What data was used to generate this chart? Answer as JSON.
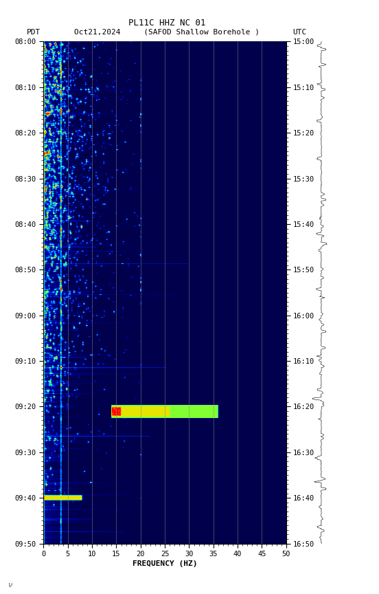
{
  "title_line1": "PL11C HHZ NC 01",
  "title_line2": "PDT   Oct21,2024      (SAFOD Shallow Borehole )                    UTC",
  "xlabel": "FREQUENCY (HZ)",
  "freq_min": 0,
  "freq_max": 50,
  "time_ticks_pdt": [
    "08:00",
    "08:10",
    "08:20",
    "08:30",
    "08:40",
    "08:50",
    "09:00",
    "09:10",
    "09:20",
    "09:30",
    "09:40",
    "09:50"
  ],
  "time_ticks_utc": [
    "15:00",
    "15:10",
    "15:20",
    "15:30",
    "15:40",
    "15:50",
    "16:00",
    "16:10",
    "16:20",
    "16:30",
    "16:40",
    "16:50"
  ],
  "freq_ticks": [
    0,
    5,
    10,
    15,
    20,
    25,
    30,
    35,
    40,
    45,
    50
  ],
  "vertical_lines_freq": [
    5,
    10,
    15,
    20,
    25,
    30,
    35,
    40,
    45
  ],
  "fig_width": 5.52,
  "fig_height": 8.64,
  "dpi": 100,
  "n_time": 600,
  "n_freq": 500,
  "spectrogram_seed": 42
}
